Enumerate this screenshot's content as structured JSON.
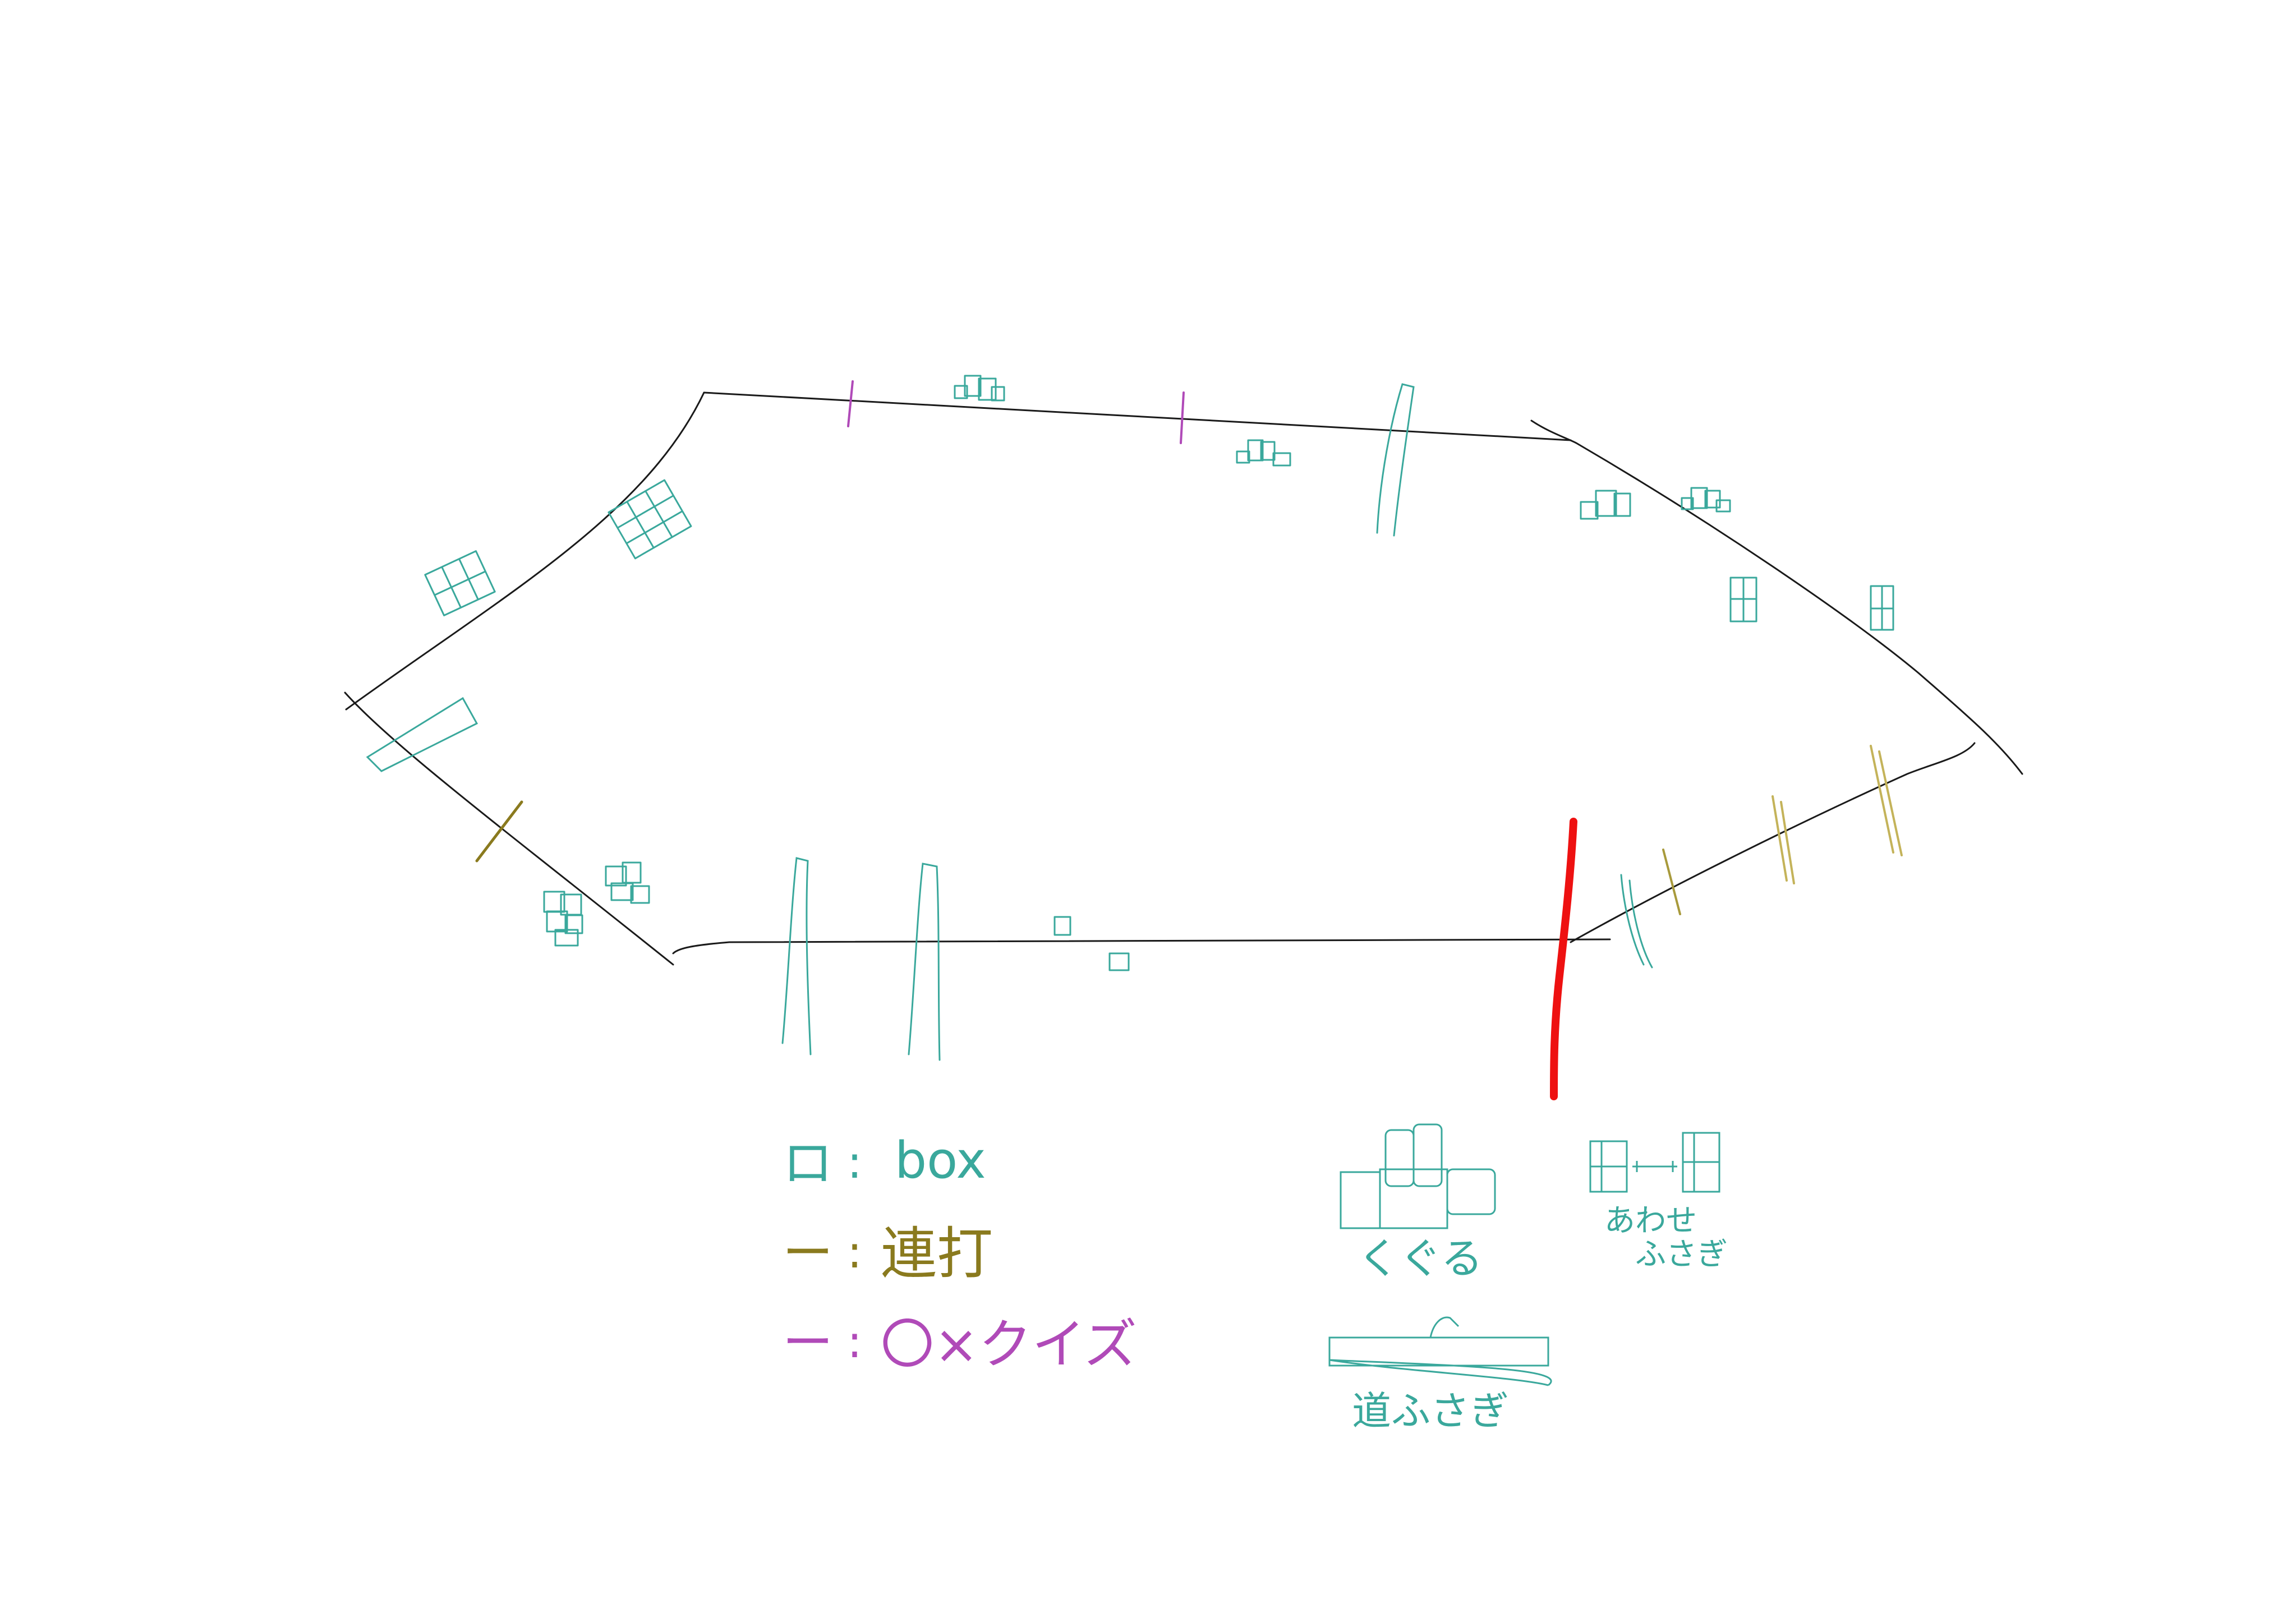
{
  "colors": {
    "track": "#1a1a1a",
    "box": "#3aa89c",
    "mash": "#8a7a1e",
    "mash_light": "#c4b35a",
    "quiz": "#b04ab8",
    "goal": "#ee1111"
  },
  "legend": {
    "box": {
      "symbol": "ロ",
      "sep": ":",
      "label": "box"
    },
    "mash": {
      "symbol": "ー",
      "sep": ":",
      "label": "連打"
    },
    "quiz": {
      "symbol": "ー",
      "sep": ":",
      "label": "〇×クイズ"
    }
  },
  "examples": {
    "crawl": "くぐる",
    "pillar_left": "あわせ",
    "pillar_right": "ふさぎ",
    "road_block": "道ふさぎ"
  }
}
